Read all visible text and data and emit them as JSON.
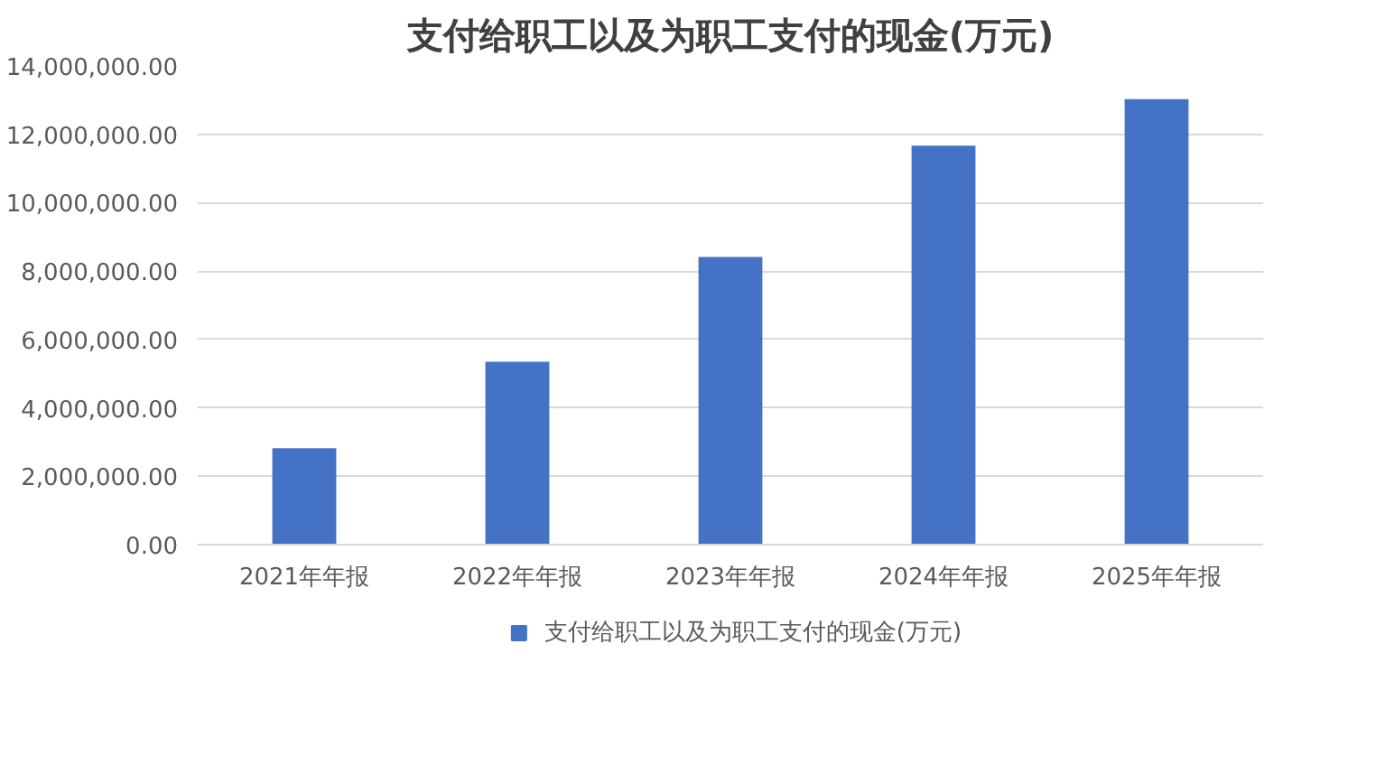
{
  "chart_data": {
    "type": "bar",
    "title": "支付给职工以及为职工支付的现金(万元)",
    "categories": [
      "2021年年报",
      "2022年年报",
      "2023年年报",
      "2024年年报",
      "2025年年报"
    ],
    "series": [
      {
        "name": "支付给职工以及为职工支付的现金(万元)",
        "color": "#4472c4",
        "values": [
          2820000,
          5350000,
          8410000,
          11670000,
          13030000
        ]
      }
    ],
    "ylim": [
      0,
      14000000
    ],
    "yticks": [
      {
        "value": 0,
        "label": "0.00"
      },
      {
        "value": 2000000,
        "label": "2,000,000.00"
      },
      {
        "value": 4000000,
        "label": "4,000,000.00"
      },
      {
        "value": 6000000,
        "label": "6,000,000.00"
      },
      {
        "value": 8000000,
        "label": "8,000,000.00"
      },
      {
        "value": 10000000,
        "label": "10,000,000.00"
      },
      {
        "value": 12000000,
        "label": "12,000,000.00"
      },
      {
        "value": 14000000,
        "label": "14,000,000.00"
      }
    ],
    "grid": "y",
    "legend": "bottom"
  }
}
